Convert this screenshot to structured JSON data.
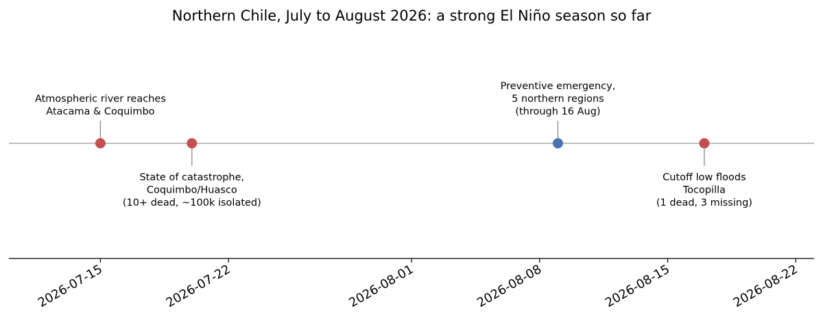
{
  "chart_data": {
    "type": "timeline",
    "title": "Northern Chile, July to August 2026: a strong El Niño season so far",
    "xlim": [
      "2026-07-10",
      "2026-08-23"
    ],
    "x_ticks": [
      "2026-07-15",
      "2026-07-22",
      "2026-08-01",
      "2026-08-08",
      "2026-08-15",
      "2026-08-22"
    ],
    "grid": false,
    "events": [
      {
        "date": "2026-07-15",
        "label_lines": [
          "Atmospheric river reaches",
          "Atacama & Coquimbo"
        ],
        "label_side": "above",
        "color": "#c44e52"
      },
      {
        "date": "2026-07-20",
        "label_lines": [
          "State of catastrophe,",
          "Coquimbo/Huasco",
          "(10+ dead, ~100k isolated)"
        ],
        "label_side": "below",
        "color": "#c44e52"
      },
      {
        "date": "2026-08-09",
        "label_lines": [
          "Preventive emergency,",
          "5 northern regions",
          "(through 16 Aug)"
        ],
        "label_side": "above",
        "color": "#4c72b0"
      },
      {
        "date": "2026-08-17",
        "label_lines": [
          "Cutoff low floods",
          "Tocopilla",
          "(1 dead, 3 missing)"
        ],
        "label_side": "below",
        "color": "#c44e52"
      }
    ],
    "colors": {
      "timeline": "#bbbbbb",
      "stem": "#888888",
      "axis": "#000000"
    }
  }
}
